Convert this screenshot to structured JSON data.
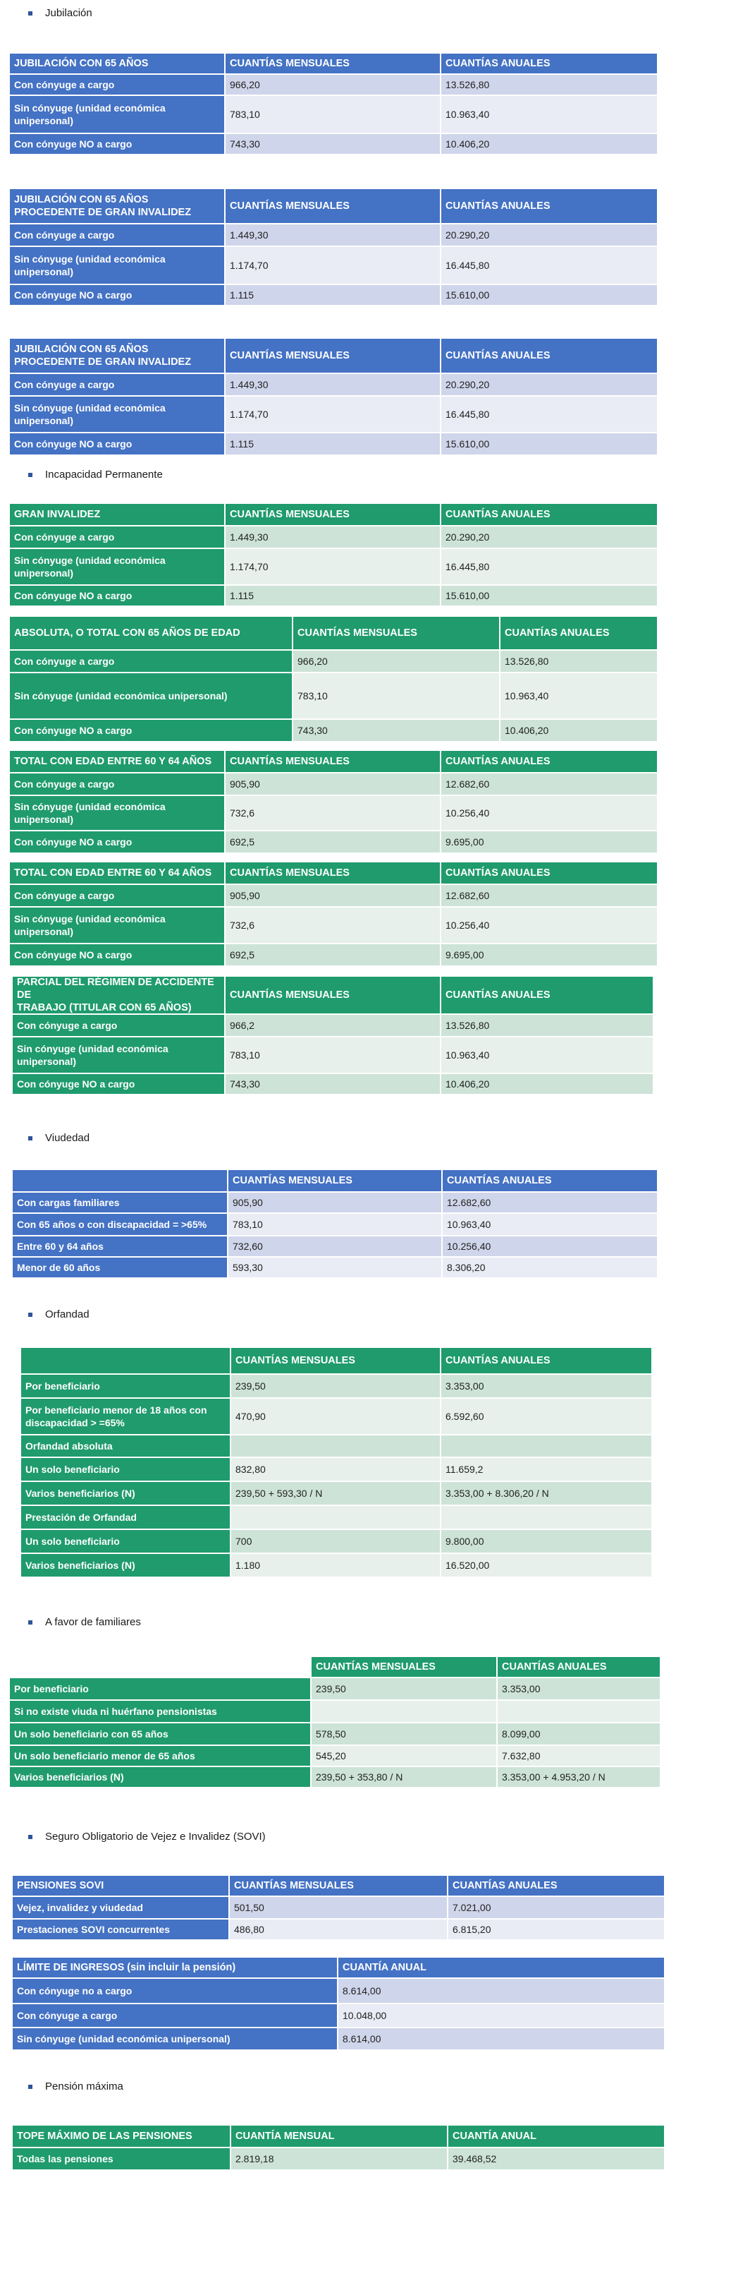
{
  "sections": [
    {
      "heading": "Jubilación",
      "tables": [
        {
          "header": [
            "JUBILACIÓN CON 65 AÑOS",
            "CUANTÍAS MENSUALES",
            "CUANTÍAS ANUALES"
          ],
          "rows": [
            [
              "Con cónyuge a cargo",
              "966,20",
              "13.526,80"
            ],
            [
              "Sin cónyuge (unidad económica\nunipersonal)",
              "783,10",
              "10.963,40"
            ],
            [
              "Con cónyuge NO a cargo",
              "743,30",
              "10.406,20"
            ]
          ]
        },
        {
          "header": [
            "JUBILACIÓN CON 65 AÑOS\nPROCEDENTE DE GRAN INVALIDEZ",
            "CUANTÍAS MENSUALES",
            "CUANTÍAS ANUALES"
          ],
          "rows": [
            [
              "Con cónyuge a cargo",
              "1.449,30",
              "20.290,20"
            ],
            [
              "Sin cónyuge (unidad económica\nunipersonal)",
              "1.174,70",
              "16.445,80"
            ],
            [
              "Con cónyuge NO a cargo",
              "1.115",
              "15.610,00"
            ]
          ]
        },
        {
          "header": [
            "JUBILACIÓN CON 65 AÑOS\nPROCEDENTE DE GRAN INVALIDEZ",
            "CUANTÍAS MENSUALES",
            "CUANTÍAS ANUALES"
          ],
          "rows": [
            [
              "Con cónyuge a cargo",
              "1.449,30",
              "20.290,20"
            ],
            [
              "Sin cónyuge (unidad económica\nunipersonal)",
              "1.174,70",
              "16.445,80"
            ],
            [
              "Con cónyuge NO a cargo",
              "1.115",
              "15.610,00"
            ]
          ]
        }
      ]
    },
    {
      "heading": "Incapacidad Permanente",
      "tables": [
        {
          "header": [
            "GRAN INVALIDEZ",
            "CUANTÍAS MENSUALES",
            "CUANTÍAS ANUALES"
          ],
          "rows": [
            [
              "Con cónyuge a cargo",
              "1.449,30",
              "20.290,20"
            ],
            [
              "Sin cónyuge (unidad económica\nunipersonal)",
              "1.174,70",
              "16.445,80"
            ],
            [
              "Con cónyuge NO a cargo",
              "1.115",
              "15.610,00"
            ]
          ]
        },
        {
          "header": [
            "ABSOLUTA, O TOTAL CON 65 AÑOS DE EDAD",
            "CUANTÍAS MENSUALES",
            "CUANTÍAS ANUALES"
          ],
          "rows": [
            [
              "Con cónyuge a cargo",
              "966,20",
              "13.526,80"
            ],
            [
              "Sin cónyuge (unidad económica unipersonal)",
              "783,10",
              "10.963,40"
            ],
            [
              "Con cónyuge NO a cargo",
              "743,30",
              "10.406,20"
            ]
          ]
        },
        {
          "header": [
            "TOTAL CON EDAD ENTRE 60 Y 64 AÑOS",
            "CUANTÍAS MENSUALES",
            "CUANTÍAS ANUALES"
          ],
          "rows": [
            [
              "Con cónyuge a cargo",
              "905,90",
              "12.682,60"
            ],
            [
              "Sin cónyuge (unidad económica\nunipersonal)",
              "732,6",
              "10.256,40"
            ],
            [
              "Con cónyuge NO a cargo",
              "692,5",
              "9.695,00"
            ]
          ]
        },
        {
          "header": [
            "TOTAL CON EDAD ENTRE 60 Y 64 AÑOS",
            "CUANTÍAS MENSUALES",
            "CUANTÍAS ANUALES"
          ],
          "rows": [
            [
              "Con cónyuge a cargo",
              "905,90",
              "12.682,60"
            ],
            [
              "Sin cónyuge (unidad económica\nunipersonal)",
              "732,6",
              "10.256,40"
            ],
            [
              "Con cónyuge NO a cargo",
              "692,5",
              "9.695,00"
            ]
          ]
        },
        {
          "header": [
            "PARCIAL DEL RÉGIMEN DE ACCIDENTE DE\nTRABAJO (TITULAR CON 65 AÑOS)",
            "CUANTÍAS MENSUALES",
            "CUANTÍAS ANUALES"
          ],
          "rows": [
            [
              "Con cónyuge a cargo",
              "966,2",
              "13.526,80"
            ],
            [
              "Sin cónyuge (unidad económica\nunipersonal)",
              "783,10",
              "10.963,40"
            ],
            [
              "Con cónyuge NO a cargo",
              "743,30",
              "10.406,20"
            ]
          ]
        }
      ]
    },
    {
      "heading": "Viudedad",
      "tables": [
        {
          "header": [
            null,
            "CUANTÍAS MENSUALES",
            "CUANTÍAS ANUALES"
          ],
          "rows": [
            [
              "Con cargas familiares",
              "905,90",
              "12.682,60"
            ],
            [
              "Con 65 años o con discapacidad = >65%",
              "783,10",
              "10.963,40"
            ],
            [
              "Entre 60 y 64 años",
              "732,60",
              "10.256,40"
            ],
            [
              "Menor de 60 años",
              "593,30",
              "8.306,20"
            ]
          ]
        }
      ]
    },
    {
      "heading": "Orfandad",
      "tables": [
        {
          "header": [
            null,
            "CUANTÍAS MENSUALES",
            "CUANTÍAS ANUALES"
          ],
          "rows": [
            [
              "Por beneficiario",
              "239,50",
              "3.353,00"
            ],
            [
              "Por beneficiario menor de 18 años con\ndiscapacidad > =65%",
              "470,90",
              "6.592,60"
            ],
            [
              "Orfandad absoluta",
              null,
              null
            ],
            [
              "Un solo beneficiario",
              "832,80",
              "11.659,2"
            ],
            [
              "Varios beneficiarios (N)",
              "239,50 + 593,30 / N",
              "3.353,00 + 8.306,20 / N"
            ],
            [
              "Prestación de Orfandad",
              null,
              null
            ],
            [
              "Un solo beneficiario",
              "700",
              "9.800,00"
            ],
            [
              "Varios beneficiarios (N)",
              "1.180",
              "16.520,00"
            ]
          ]
        }
      ]
    },
    {
      "heading": "A favor de familiares",
      "tables": [
        {
          "header": [
            null,
            "CUANTÍAS MENSUALES",
            "CUANTÍAS ANUALES"
          ],
          "rows": [
            [
              "Por beneficiario",
              "239,50",
              "3.353,00"
            ],
            [
              "Si no existe viuda ni huérfano pensionistas",
              null,
              null
            ],
            [
              "Un solo beneficiario con 65 años",
              "578,50",
              "8.099,00"
            ],
            [
              "Un solo beneficiario menor de 65 años",
              "545,20",
              "7.632,80"
            ],
            [
              "Varios beneficiarios (N)",
              "239,50 + 353,80 / N",
              "3.353,00 + 4.953,20 / N"
            ]
          ]
        }
      ]
    },
    {
      "heading": "Seguro Obligatorio de Vejez e Invalidez (SOVI)",
      "tables": [
        {
          "header": [
            "PENSIONES SOVI",
            "CUANTÍAS MENSUALES",
            "CUANTÍAS ANUALES"
          ],
          "rows": [
            [
              "Vejez, invalidez y viudedad",
              "501,50",
              "7.021,00"
            ],
            [
              "Prestaciones SOVI concurrentes",
              "486,80",
              "6.815,20"
            ]
          ]
        },
        {
          "header": [
            "LÍMITE DE INGRESOS (sin incluir la pensión)",
            "CUANTÍA ANUAL"
          ],
          "rows": [
            [
              "Con cónyuge no a cargo",
              "8.614,00"
            ],
            [
              "Con cónyuge a cargo",
              "10.048,00"
            ],
            [
              "Sin cónyuge (unidad económica unipersonal)",
              "8.614,00"
            ]
          ]
        }
      ]
    },
    {
      "heading": "Pensión máxima",
      "tables": [
        {
          "header": [
            "TOPE MÁXIMO DE LAS PENSIONES",
            "CUANTÍA MENSUAL",
            "CUANTÍA ANUAL"
          ],
          "rows": [
            [
              "Todas las pensiones",
              "2.819,18",
              "39.468,52"
            ]
          ]
        }
      ]
    }
  ]
}
